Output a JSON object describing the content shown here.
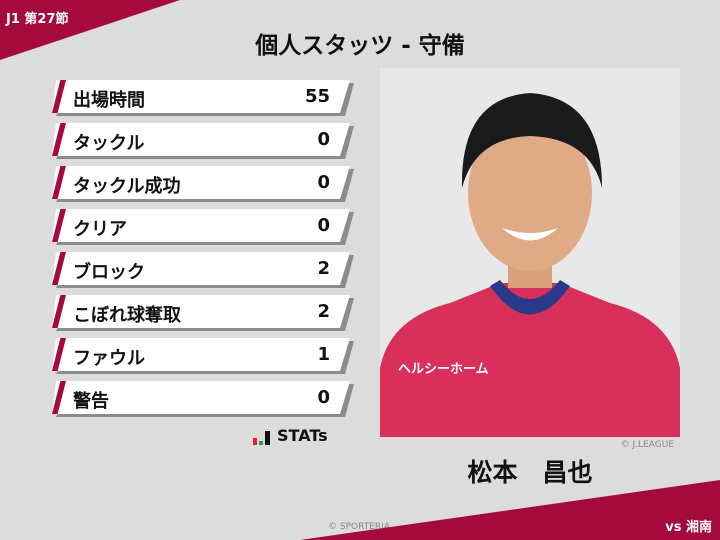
{
  "header": {
    "round": "J1 第27節",
    "title": "個人スタッツ - 守備"
  },
  "stats": [
    {
      "label": "出場時間",
      "value": "55"
    },
    {
      "label": "タックル",
      "value": "0"
    },
    {
      "label": "タックル成功",
      "value": "0"
    },
    {
      "label": "クリア",
      "value": "0"
    },
    {
      "label": "ブロック",
      "value": "2"
    },
    {
      "label": "こぼれ球奪取",
      "value": "2"
    },
    {
      "label": "ファウル",
      "value": "1"
    },
    {
      "label": "警告",
      "value": "0"
    }
  ],
  "brand": {
    "stats_logo": "STATs"
  },
  "player": {
    "name": "松本　昌也",
    "photo_credit": "© J.LEAGUE",
    "shirt_sponsor": "ヘルシーホーム"
  },
  "footer": {
    "credit": "© SPORTERIA",
    "opponent": "vs 湘南"
  },
  "colors": {
    "accent": "#a50a3c",
    "background": "#dcdcdc"
  }
}
